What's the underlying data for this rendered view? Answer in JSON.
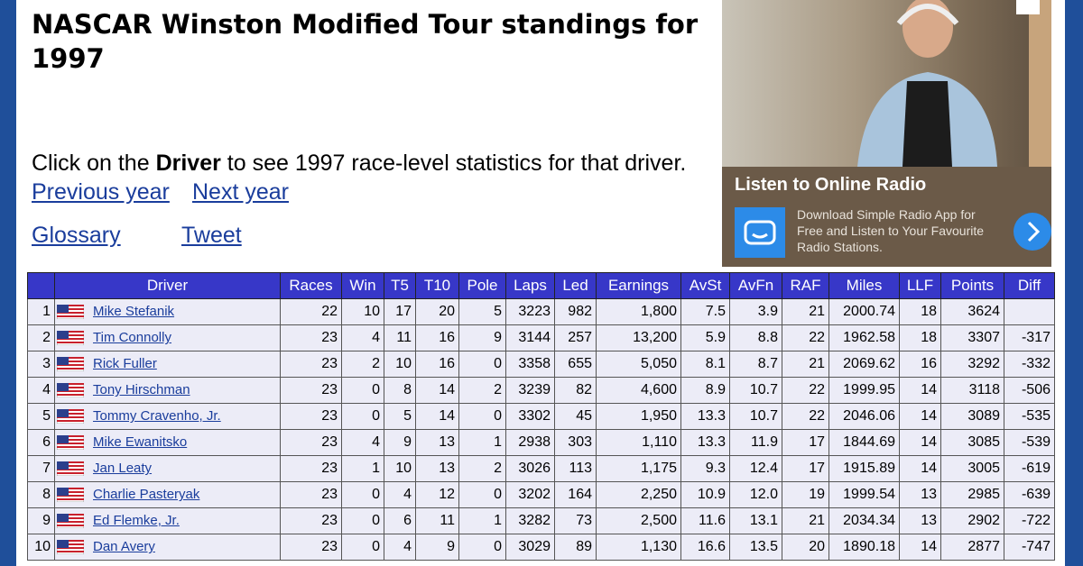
{
  "page": {
    "title": "NASCAR Winston Modified Tour standings for 1997",
    "intro": {
      "before": "Click on the ",
      "bold": "Driver",
      "after": " to see 1997 race-level statistics for that driver."
    },
    "links": [
      "Previous year",
      "Next year",
      "Glossary",
      "Tweet"
    ],
    "ad": {
      "headline": "Listen to Online Radio",
      "body": "Download Simple Radio App for Free and Listen to Your Favourite Radio Stations."
    },
    "table": {
      "columns": [
        "Driver",
        "Races",
        "Win",
        "T5",
        "T10",
        "Pole",
        "Laps",
        "Led",
        "Earnings",
        "AvSt",
        "AvFn",
        "RAF",
        "Miles",
        "LLF",
        "Points",
        "Diff"
      ],
      "rows": [
        [
          "1",
          "Mike Stefanik",
          "22",
          "10",
          "17",
          "20",
          "5",
          "3223",
          "982",
          "1,800",
          "7.5",
          "3.9",
          "21",
          "2000.74",
          "18",
          "3624"
        ],
        [
          "2",
          "Tim Connolly",
          "23",
          "4",
          "11",
          "16",
          "9",
          "3144",
          "257",
          "13,200",
          "5.9",
          "8.8",
          "22",
          "1962.58",
          "18",
          "3307",
          "-317"
        ],
        [
          "3",
          "Rick Fuller",
          "23",
          "2",
          "10",
          "16",
          "0",
          "3358",
          "655",
          "5,050",
          "8.1",
          "8.7",
          "21",
          "2069.62",
          "16",
          "3292",
          "-332"
        ],
        [
          "4",
          "Tony Hirschman",
          "23",
          "0",
          "8",
          "14",
          "2",
          "3239",
          "82",
          "4,600",
          "8.9",
          "10.7",
          "22",
          "1999.95",
          "14",
          "3118",
          "-506"
        ],
        [
          "5",
          "Tommy Cravenho, Jr.",
          "23",
          "0",
          "5",
          "14",
          "0",
          "3302",
          "45",
          "1,950",
          "13.3",
          "10.7",
          "22",
          "2046.06",
          "14",
          "3089",
          "-535"
        ],
        [
          "6",
          "Mike Ewanitsko",
          "23",
          "4",
          "9",
          "13",
          "1",
          "2938",
          "303",
          "1,110",
          "13.3",
          "11.9",
          "17",
          "1844.69",
          "14",
          "3085",
          "-539"
        ],
        [
          "7",
          "Jan Leaty",
          "23",
          "1",
          "10",
          "13",
          "2",
          "3026",
          "113",
          "1,175",
          "9.3",
          "12.4",
          "17",
          "1915.89",
          "14",
          "3005",
          "-619"
        ],
        [
          "8",
          "Charlie Pasteryak",
          "23",
          "0",
          "4",
          "12",
          "0",
          "3202",
          "164",
          "2,250",
          "10.9",
          "12.0",
          "19",
          "1999.54",
          "13",
          "2985",
          "-639"
        ],
        [
          "9",
          "Ed Flemke, Jr.",
          "23",
          "0",
          "6",
          "11",
          "1",
          "3282",
          "73",
          "2,500",
          "11.6",
          "13.1",
          "21",
          "2034.34",
          "13",
          "2902",
          "-722"
        ],
        [
          "10",
          "Dan Avery",
          "23",
          "0",
          "4",
          "9",
          "0",
          "3029",
          "89",
          "1,130",
          "16.6",
          "13.5",
          "20",
          "1890.18",
          "14",
          "2877",
          "-747"
        ]
      ]
    }
  }
}
